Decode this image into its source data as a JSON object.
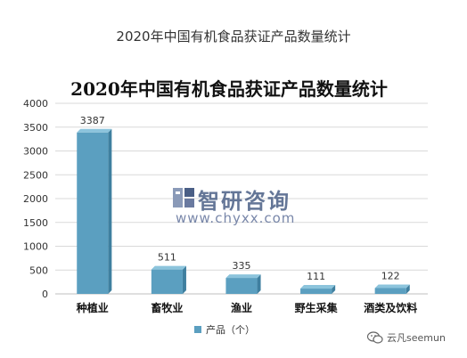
{
  "page": {
    "title": "2020年中国有机食品获证产品数量统计"
  },
  "watermark": {
    "brand": "智研咨询",
    "url": "www.chyxx.com"
  },
  "footer": {
    "account": "云凡seemun"
  },
  "chart_data": {
    "type": "bar",
    "title": "2020年中国有机食品获证产品数量统计",
    "categories": [
      "种植业",
      "畜牧业",
      "渔业",
      "野生采集",
      "酒类及饮料"
    ],
    "series": [
      {
        "name": "产品（个）",
        "values": [
          3387,
          511,
          335,
          111,
          122
        ]
      }
    ],
    "data_labels": [
      "3387",
      "511",
      "335",
      "111",
      "122"
    ],
    "ylim": [
      0,
      4000
    ],
    "yticks": [
      0,
      500,
      1000,
      1500,
      2000,
      2500,
      3000,
      3500,
      4000
    ],
    "ytick_labels": [
      "0",
      "500",
      "1000",
      "1500",
      "2000",
      "2500",
      "3000",
      "3500",
      "4000"
    ],
    "grid": true,
    "legend_position": "bottom",
    "colors": {
      "bar_face": "#5b9fc0",
      "bar_top": "#8cc4dc",
      "bar_side": "#3f7f9f"
    }
  }
}
